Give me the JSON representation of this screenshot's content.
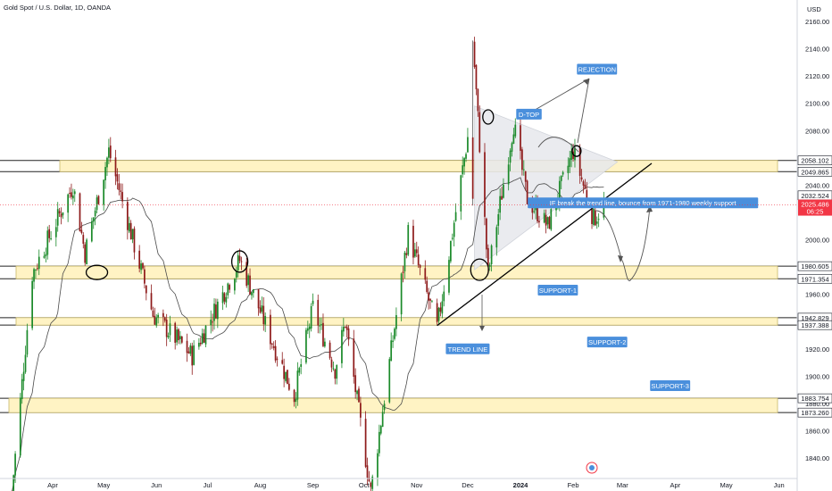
{
  "header": {
    "title": "Gold Spot / U.S. Dollar, 1D, OANDA",
    "currency": "USD"
  },
  "colors": {
    "up": "#1b8a2a",
    "down": "#8e1a1a",
    "zone_fill": "#fff3c4",
    "zone_stroke": "#222222",
    "label_bg": "#4a8fdc",
    "triangle_fill": "#e6e8ec",
    "current_tag": "#f23645",
    "price_tag": "#ffffff"
  },
  "chart_data": {
    "type": "candlestick",
    "title": "Gold Spot / U.S. Dollar, 1D, OANDA",
    "ylim": [
      1826,
      2175
    ],
    "y_ticks": [
      1840,
      1860,
      1880,
      1900,
      1920,
      1940,
      1960,
      1980,
      2000,
      2020,
      2040,
      2060,
      2080,
      2100,
      2120,
      2140,
      2160
    ],
    "x_ticks": [
      {
        "label": "Apr",
        "date": "2023-04-01",
        "bold": false
      },
      {
        "label": "May",
        "date": "2023-05-01",
        "bold": false
      },
      {
        "label": "Jun",
        "date": "2023-06-01",
        "bold": false
      },
      {
        "label": "Jul",
        "date": "2023-07-01",
        "bold": false
      },
      {
        "label": "Aug",
        "date": "2023-08-01",
        "bold": false
      },
      {
        "label": "Sep",
        "date": "2023-09-01",
        "bold": false
      },
      {
        "label": "Oct",
        "date": "2023-10-01",
        "bold": false
      },
      {
        "label": "Nov",
        "date": "2023-11-01",
        "bold": false
      },
      {
        "label": "Dec",
        "date": "2023-12-01",
        "bold": false
      },
      {
        "label": "2024",
        "date": "2024-01-01",
        "bold": true
      },
      {
        "label": "Feb",
        "date": "2024-02-01",
        "bold": false
      },
      {
        "label": "Mar",
        "date": "2024-03-01",
        "bold": false
      },
      {
        "label": "Apr",
        "date": "2024-04-01",
        "bold": false
      },
      {
        "label": "May",
        "date": "2024-05-01",
        "bold": false
      },
      {
        "label": "Jun",
        "date": "2024-06-01",
        "bold": false
      }
    ],
    "price_key_points": [
      {
        "date": "2023-03-08",
        "price": 1815
      },
      {
        "date": "2023-03-20",
        "price": 1975
      },
      {
        "date": "2023-04-13",
        "price": 2040
      },
      {
        "date": "2023-04-20",
        "price": 1990
      },
      {
        "date": "2023-05-04",
        "price": 2065
      },
      {
        "date": "2023-05-30",
        "price": 1945
      },
      {
        "date": "2023-06-22",
        "price": 1915
      },
      {
        "date": "2023-07-20",
        "price": 1985
      },
      {
        "date": "2023-08-21",
        "price": 1885
      },
      {
        "date": "2023-09-01",
        "price": 1950
      },
      {
        "date": "2023-09-14",
        "price": 1905
      },
      {
        "date": "2023-09-20",
        "price": 1940
      },
      {
        "date": "2023-10-05",
        "price": 1815
      },
      {
        "date": "2023-10-27",
        "price": 2005
      },
      {
        "date": "2023-11-13",
        "price": 1935
      },
      {
        "date": "2023-12-01",
        "price": 2075
      },
      {
        "date": "2023-12-04",
        "price": 2146
      },
      {
        "date": "2023-12-13",
        "price": 1975
      },
      {
        "date": "2023-12-28",
        "price": 2085
      },
      {
        "date": "2024-01-05",
        "price": 2030
      },
      {
        "date": "2024-01-17",
        "price": 2010
      },
      {
        "date": "2024-02-01",
        "price": 2065
      },
      {
        "date": "2024-02-13",
        "price": 2015
      },
      {
        "date": "2024-02-19",
        "price": 2025
      }
    ],
    "moving_average": "smooth",
    "zones": [
      {
        "name": "resistance-zone",
        "top": 2058.102,
        "bottom": 2049.865
      },
      {
        "name": "support-1",
        "top": 1980.605,
        "bottom": 1971.354
      },
      {
        "name": "support-2",
        "top": 1942.829,
        "bottom": 1937.388
      },
      {
        "name": "support-3",
        "top": 1883.754,
        "bottom": 1873.26
      }
    ],
    "price_tags": [
      {
        "value": "2058.102",
        "price": 2058.102
      },
      {
        "value": "2049.865",
        "price": 2049.865
      },
      {
        "value": "2032.524",
        "price": 2032.524
      },
      {
        "value": "1980.605",
        "price": 1980.605
      },
      {
        "value": "1971.354",
        "price": 1971.354
      },
      {
        "value": "1942.829",
        "price": 1942.829
      },
      {
        "value": "1937.388",
        "price": 1937.388
      },
      {
        "value": "1883.754",
        "price": 1883.754
      },
      {
        "value": "1873.260",
        "price": 1873.26
      }
    ],
    "current_price": {
      "value": "2025.486",
      "countdown": "06:25",
      "price": 2025.486
    },
    "trend_line": [
      {
        "date": "2023-11-13",
        "price": 1937
      },
      {
        "date": "2024-02-27",
        "price": 2057
      }
    ],
    "triangle": [
      {
        "date": "2023-12-05",
        "price": 2098
      },
      {
        "date": "2023-12-05",
        "price": 1978
      },
      {
        "date": "2024-02-27",
        "price": 2057
      }
    ],
    "annotations": [
      {
        "text": "REJECTION",
        "date": "2024-02-15",
        "price": 2125
      },
      {
        "text": "D-TOP",
        "date": "2024-01-06",
        "price": 2092
      },
      {
        "text": "IF break the trend line, bounce from 1971-1980 weekly support",
        "date": "2024-03-13",
        "price": 2027
      },
      {
        "text": "SUPPORT-1",
        "date": "2024-01-23",
        "price": 1963
      },
      {
        "text": "SUPPORT-2",
        "date": "2024-02-21",
        "price": 1925
      },
      {
        "text": "TREND LINE",
        "date": "2023-12-01",
        "price": 1920
      },
      {
        "text": "SUPPORT-3",
        "date": "2024-03-29",
        "price": 1893
      }
    ]
  }
}
